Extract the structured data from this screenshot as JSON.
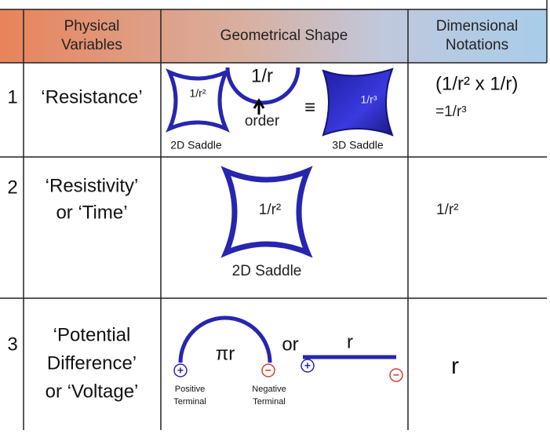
{
  "header": {
    "number": "",
    "variables": [
      "Physical",
      "Variables"
    ],
    "shape": "Geometrical Shape",
    "notation": [
      "Dimensional",
      "Notations"
    ]
  },
  "rows": [
    {
      "number": "1",
      "variable": [
        "‘Resistance’"
      ],
      "shape": {
        "saddle_2d": "1/r²",
        "arc": "1/r",
        "order": "order",
        "equiv": "≡",
        "saddle_3d": "1/r³",
        "label_2d": "2D Saddle",
        "label_3d": "3D Saddle"
      },
      "notation": [
        "(1/r² x 1/r)",
        "=1/r³"
      ]
    },
    {
      "number": "2",
      "variable": [
        "‘Resistivity’",
        "or ‘Time’"
      ],
      "shape": {
        "saddle_2d": "1/r²",
        "label_2d": "2D Saddle"
      },
      "notation": [
        "1/r²"
      ]
    },
    {
      "number": "3",
      "variable": [
        "‘Potential",
        "Difference’",
        "or ‘Voltage’"
      ],
      "shape": {
        "arc": "πr",
        "or": "or",
        "line": "r",
        "plus": "+",
        "minus": "−",
        "positive": [
          "Positive",
          "Terminal"
        ],
        "negative": [
          "Negative",
          "Terminal"
        ]
      },
      "notation": [
        "r"
      ]
    }
  ]
}
